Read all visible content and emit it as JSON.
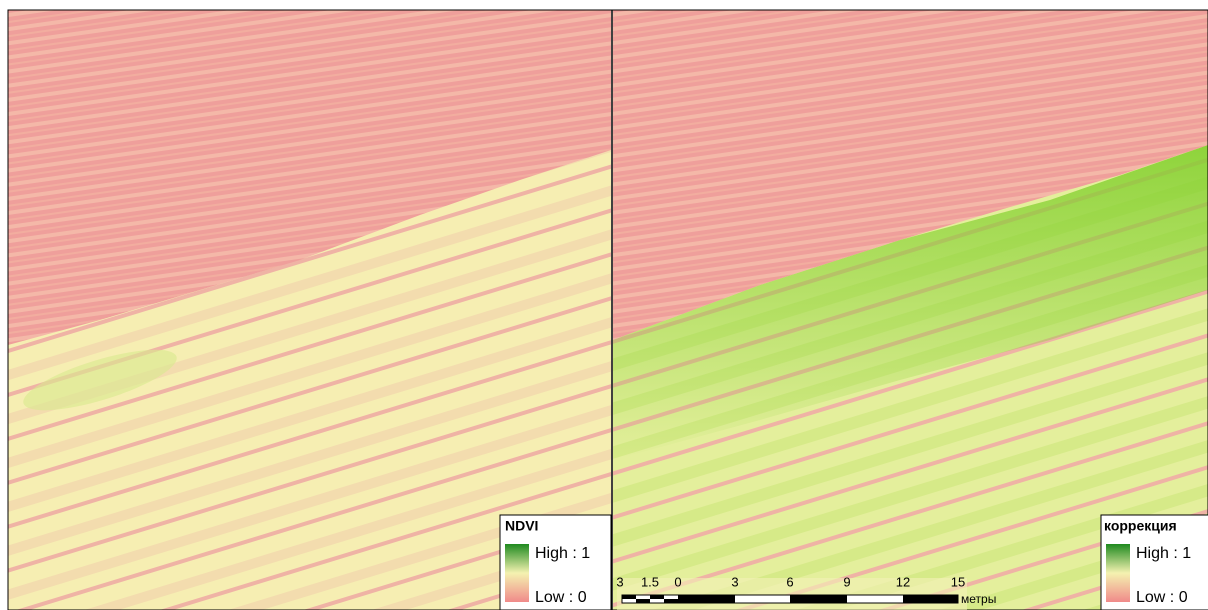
{
  "panels": [
    {
      "legend": {
        "title": "NDVI",
        "high": "High : 1",
        "low": "Low : 0"
      }
    },
    {
      "legend": {
        "title": "коррекция",
        "high": "High : 1",
        "low": "Low : 0"
      }
    }
  ],
  "scale_bar": {
    "labels": [
      "3",
      "1.5",
      "0",
      "3",
      "6",
      "9",
      "12",
      "15"
    ],
    "unit": "метры"
  }
}
